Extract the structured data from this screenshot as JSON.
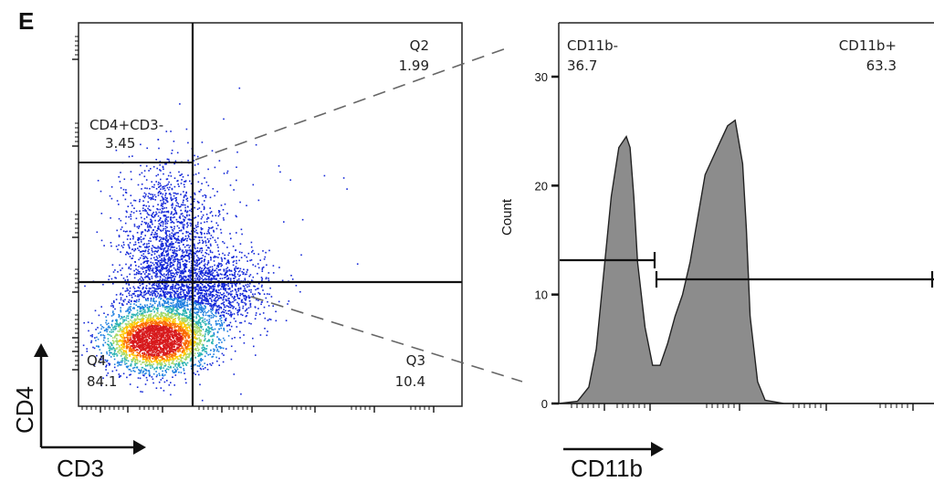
{
  "panel_label": "E",
  "chart_data": [
    {
      "type": "scatter",
      "xlabel": "CD3",
      "ylabel": "CD4",
      "gates": [
        {
          "name": "CD4+CD3-",
          "value": "3.45"
        },
        {
          "name": "Q2",
          "value": "1.99"
        },
        {
          "name": "Q3",
          "value": "10.4"
        },
        {
          "name": "Q4",
          "value": "84.1"
        }
      ]
    },
    {
      "type": "area",
      "xlabel": "CD11b",
      "ylabel": "Count",
      "ylim": [
        0,
        35
      ],
      "yticks": [
        0,
        10,
        20,
        30
      ],
      "gates": [
        {
          "name": "CD11b-",
          "value": "36.7"
        },
        {
          "name": "CD11b+",
          "value": "63.3"
        }
      ],
      "x": [
        0,
        0.05,
        0.08,
        0.1,
        0.12,
        0.14,
        0.16,
        0.18,
        0.19,
        0.2,
        0.21,
        0.23,
        0.25,
        0.27,
        0.29,
        0.31,
        0.33,
        0.35,
        0.37,
        0.39,
        0.41,
        0.43,
        0.45,
        0.47,
        0.49,
        0.5,
        0.51,
        0.53,
        0.55,
        0.6,
        1.0
      ],
      "y": [
        0,
        0.2,
        1.5,
        5,
        12,
        19,
        23.5,
        24.5,
        23.5,
        19,
        13,
        7,
        3.5,
        3.5,
        5.5,
        8,
        10,
        13,
        17,
        21,
        22.5,
        24,
        25.5,
        26,
        22,
        16,
        8,
        2,
        0.3,
        0,
        0
      ]
    }
  ]
}
